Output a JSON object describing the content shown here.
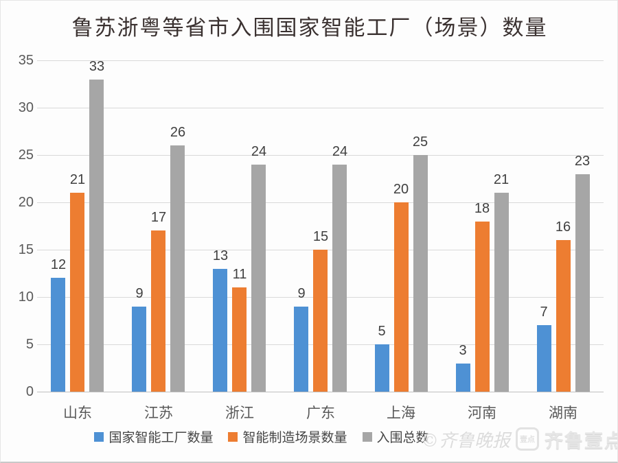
{
  "title": "鲁苏浙粤等省市入围国家智能工厂（场景）数量",
  "chart_data": {
    "type": "bar",
    "title": "鲁苏浙粤等省市入围国家智能工厂（场景）数量",
    "categories": [
      "山东",
      "江苏",
      "浙江",
      "广东",
      "上海",
      "河南",
      "湖南"
    ],
    "series": [
      {
        "name": "国家智能工厂数量",
        "color": "#4e91d4",
        "values": [
          12,
          9,
          13,
          9,
          5,
          3,
          7
        ]
      },
      {
        "name": "智能制造场景数量",
        "color": "#ed7d31",
        "values": [
          21,
          17,
          11,
          15,
          20,
          18,
          16
        ]
      },
      {
        "name": "入围总数",
        "color": "#a6a6a6",
        "values": [
          33,
          26,
          24,
          24,
          25,
          21,
          23
        ]
      }
    ],
    "xlabel": "",
    "ylabel": "",
    "ylim": [
      0,
      35
    ],
    "yticks": [
      0,
      5,
      10,
      15,
      20,
      25,
      30,
      35
    ],
    "grid": true,
    "legend_position": "bottom",
    "data_labels": true
  },
  "watermark": {
    "paper_credit": "©齐鲁晚报",
    "app_name": "齐鲁壹点",
    "logo_text": "壹点"
  },
  "colors": {
    "series_blue": "#4e91d4",
    "series_orange": "#ed7d31",
    "series_gray": "#a6a6a6",
    "gridline": "#d9d9d9",
    "axis_text": "#595959",
    "value_label": "#3f3f3f",
    "title_text": "#3a3130"
  }
}
